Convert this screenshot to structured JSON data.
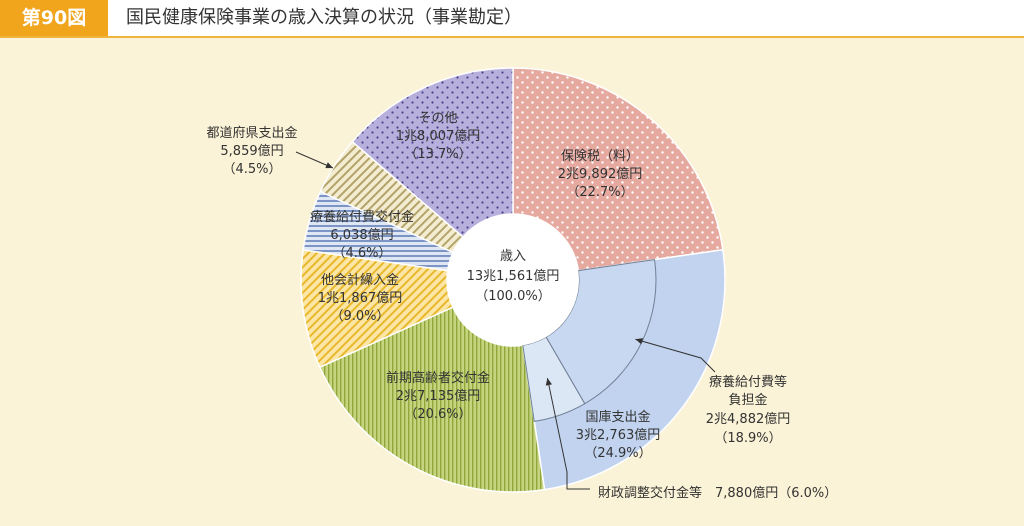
{
  "header": {
    "figure_number": "第90図",
    "title": "国民健康保険事業の歳入決算の状況（事業勘定）"
  },
  "colors": {
    "header_accent": "#f0a51c",
    "background": "#fbf3d7"
  },
  "chart_data": {
    "type": "pie",
    "title": "国民健康保険事業の歳入決算の状況（事業勘定）",
    "center": {
      "label": "歳入",
      "value_text": "13兆1,561億円",
      "pct_text": "（100.0%）",
      "total_oku_yen": 131561
    },
    "slices": [
      {
        "key": "hoken",
        "name": "保険税（料）",
        "value_text": "2兆9,892億円",
        "pct_text": "（22.7%）",
        "value_oku_yen": 29892,
        "percent": 22.7,
        "color": "#e6a9a0",
        "pattern": "dots-white"
      },
      {
        "key": "kokko",
        "name": "国庫支出金",
        "value_text": "3兆2,763億円",
        "pct_text": "（24.9%）",
        "value_oku_yen": 32763,
        "percent": 24.9,
        "color": "#c1d3ee",
        "pattern": "solid"
      },
      {
        "key": "zenki",
        "name": "前期高齢者交付金",
        "value_text": "2兆7,135億円",
        "pct_text": "（20.6%）",
        "value_oku_yen": 27135,
        "percent": 20.6,
        "color": "#b7c96a",
        "pattern": "vertical-lines"
      },
      {
        "key": "takaikei",
        "name": "他会計繰入金",
        "value_text": "1兆1,867億円",
        "pct_text": "（9.0%）",
        "value_oku_yen": 11867,
        "percent": 9.0,
        "color": "#f7d477",
        "pattern": "diagonal-lines"
      },
      {
        "key": "ryouyou_kofu",
        "name": "療養給付費交付金",
        "value_text": "6,038億円",
        "pct_text": "（4.6%）",
        "value_oku_yen": 6038,
        "percent": 4.6,
        "color": "#a9bee0",
        "pattern": "horizontal-lines"
      },
      {
        "key": "todofuken",
        "name": "都道府県支出金",
        "value_text": "5,859億円",
        "pct_text": "（4.5%）",
        "value_oku_yen": 5859,
        "percent": 4.5,
        "color": "#e9dcaa",
        "pattern": "diagonal-lines-dark"
      },
      {
        "key": "sonota",
        "name": "その他",
        "value_text": "1兆8,007億円",
        "pct_text": "（13.7%）",
        "value_oku_yen": 18007,
        "percent": 13.7,
        "color": "#b8b0dc",
        "pattern": "dots-dark"
      }
    ],
    "kokko_breakdown": [
      {
        "key": "ryouyou_futan",
        "name": "療養給付費等負担金",
        "name_line1": "療養給付費等",
        "name_line2": "負担金",
        "value_text": "2兆4,882億円",
        "pct_text": "（18.9%）",
        "value_oku_yen": 24882,
        "percent": 18.9,
        "color": "#c8d8f0"
      },
      {
        "key": "zaisei_chosei",
        "name": "財政調整交付金等",
        "value_text": "7,880億円",
        "pct_text": "（6.0%）",
        "value_oku_yen": 7880,
        "percent": 6.0,
        "color": "#dce7f6",
        "label_text": "財政調整交付金等　7,880億円（6.0%）"
      }
    ]
  }
}
